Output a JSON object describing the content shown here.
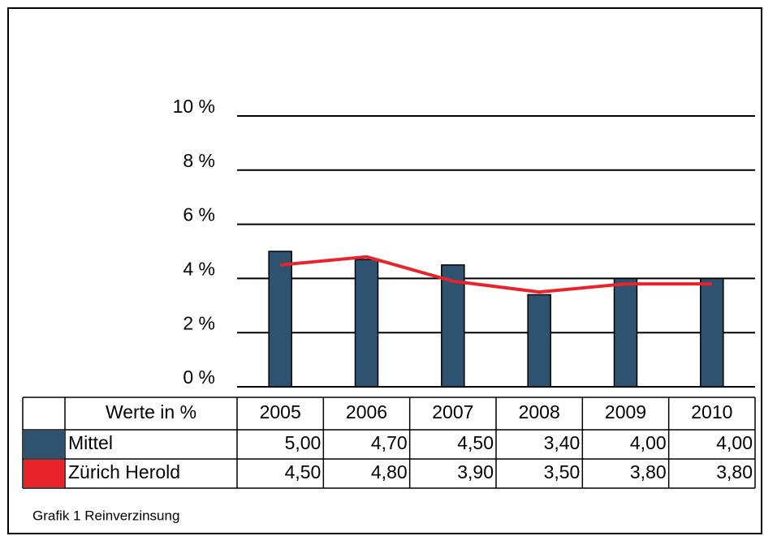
{
  "chart_data": {
    "type": "bar",
    "table_header": "Werte in %",
    "caption": "Grafik 1 Reinverzinsung",
    "categories": [
      "2005",
      "2006",
      "2007",
      "2008",
      "2009",
      "2010"
    ],
    "series": [
      {
        "name": "Mittel",
        "type": "bar",
        "color": "#2f5270",
        "values": [
          5.0,
          4.7,
          4.5,
          3.4,
          4.0,
          4.0
        ],
        "value_labels": [
          "5,00",
          "4,70",
          "4,50",
          "3,40",
          "4,00",
          "4,00"
        ]
      },
      {
        "name": "Zürich Herold",
        "type": "line",
        "color": "#e8232a",
        "values": [
          4.5,
          4.8,
          3.9,
          3.5,
          3.8,
          3.8
        ],
        "value_labels": [
          "4,50",
          "4,80",
          "3,90",
          "3,50",
          "3,80",
          "3,80"
        ]
      }
    ],
    "ylim": [
      0,
      10
    ],
    "yticks": [
      {
        "value": 0,
        "label": "0 %"
      },
      {
        "value": 2,
        "label": "2 %"
      },
      {
        "value": 4,
        "label": "4 %"
      },
      {
        "value": 6,
        "label": "6 %"
      },
      {
        "value": 8,
        "label": "8 %"
      },
      {
        "value": 10,
        "label": "10 %"
      }
    ],
    "grid": true
  }
}
